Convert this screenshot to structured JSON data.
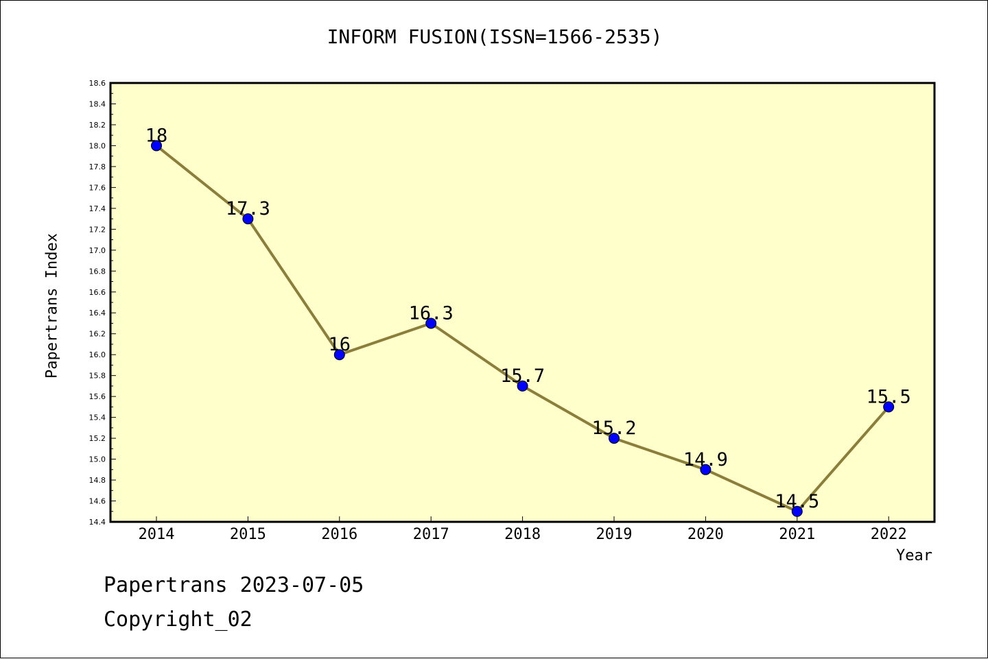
{
  "title": "INFORM FUSION(ISSN=1566-2535)",
  "footer": {
    "line1": "Papertrans 2023-07-05",
    "line2": "Copyright_02"
  },
  "colors": {
    "plot_background": "#ffffcc",
    "line": "#8b7d3a",
    "marker": "#0000ff",
    "axis": "#000000"
  },
  "chart_data": {
    "type": "line",
    "title": "INFORM FUSION(ISSN=1566-2535)",
    "xlabel": "Year",
    "ylabel": "Papertrans Index",
    "categories": [
      "2014",
      "2015",
      "2016",
      "2017",
      "2018",
      "2019",
      "2020",
      "2021",
      "2022"
    ],
    "series": [
      {
        "values": [
          18,
          17.3,
          16,
          16.3,
          15.7,
          15.2,
          14.9,
          14.5,
          15.5
        ],
        "labels": [
          "18",
          "17.3",
          "16",
          "16.3",
          "15.7",
          "15.2",
          "14.9",
          "14.5",
          "15.5"
        ]
      }
    ],
    "ylim": [
      14.4,
      18.6
    ],
    "yticks": [
      "14.4",
      "14.6",
      "14.8",
      "15.0",
      "15.2",
      "15.4",
      "15.6",
      "15.8",
      "16.0",
      "16.2",
      "16.4",
      "16.6",
      "16.8",
      "17.0",
      "17.2",
      "17.4",
      "17.6",
      "17.8",
      "18.0",
      "18.2",
      "18.4",
      "18.6"
    ],
    "grid": false,
    "legend": "none"
  }
}
